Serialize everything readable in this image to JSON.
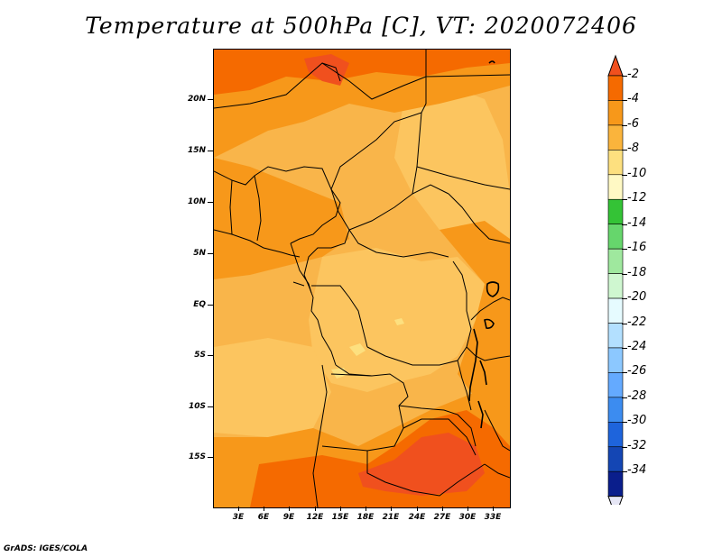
{
  "title": "Temperature at 500hPa [C], VT: 2020072406",
  "footer": "GrADS: IGES/COLA",
  "lat_labels": [
    "20N",
    "15N",
    "10N",
    "5N",
    "EQ",
    "5S",
    "10S",
    "15S"
  ],
  "lon_labels": [
    "3E",
    "6E",
    "9E",
    "12E",
    "15E",
    "18E",
    "21E",
    "24E",
    "27E",
    "30E",
    "33E"
  ],
  "colorbar": {
    "labels": [
      "-2",
      "-4",
      "-6",
      "-8",
      "-10",
      "-12",
      "-14",
      "-16",
      "-18",
      "-20",
      "-22",
      "-24",
      "-26",
      "-28",
      "-30",
      "-32",
      "-34"
    ],
    "colors": [
      "#f0501e",
      "#f56a00",
      "#f7981a",
      "#fab43c",
      "#fde07f",
      "#fff9c4",
      "#34c336",
      "#66d66c",
      "#9fe89e",
      "#cff7d0",
      "#e6fbff",
      "#b3e0ff",
      "#8cc8ff",
      "#64aaff",
      "#3c8cf0",
      "#1e64dc",
      "#1446b4",
      "#0a1e8c",
      "#e6e6f5"
    ]
  },
  "colors": {
    "map_base": "#f9b54a",
    "map_light": "#fcc55f",
    "map_warm": "#f7981a",
    "map_hot": "#f56a00",
    "map_hottest": "#f0501e",
    "map_pale": "#fde07f",
    "borders": "#000000"
  }
}
